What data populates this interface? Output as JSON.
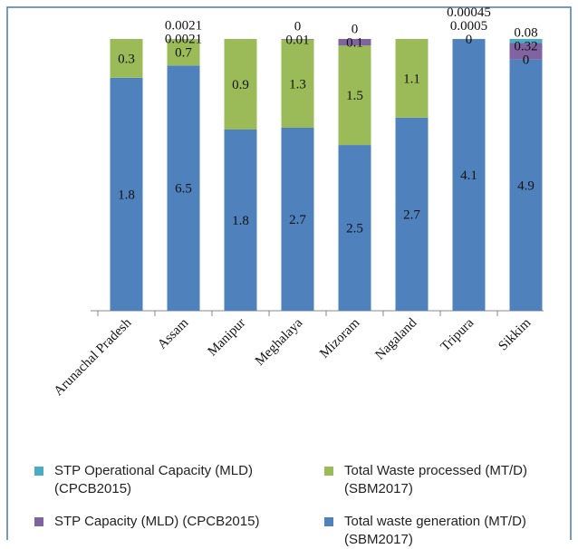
{
  "chart_data": {
    "type": "stacked_percent_bar",
    "categories": [
      "Arunachal Pradesh",
      "Assam",
      "Manipur",
      "Meghalaya",
      "Mizoram",
      "Nagaland",
      "Tripura",
      "Sikkim"
    ],
    "series": [
      {
        "name": "Total waste generation (MT/D) (SBM2017)",
        "color": "#4f81bd",
        "values": [
          1.8,
          6.5,
          1.8,
          2.7,
          2.5,
          2.7,
          4.1,
          4.9
        ]
      },
      {
        "name": "Total Waste processed (MT/D) (SBM2017)",
        "color": "#9bbb59",
        "values": [
          0.3,
          0.7,
          0.9,
          1.3,
          1.5,
          1.1,
          0,
          0
        ]
      },
      {
        "name": "STP Capacity (MLD) (CPCB2015)",
        "color": "#8064a2",
        "values": [
          null,
          0.0021,
          null,
          0.01,
          0.1,
          null,
          0.0005,
          0.32
        ]
      },
      {
        "name": "STP Operational Capacity (MLD) (CPCB2015)",
        "color": "#4bacc6",
        "values": [
          null,
          0.0021,
          null,
          0,
          0,
          null,
          0.00045,
          0.08
        ]
      }
    ]
  }
}
